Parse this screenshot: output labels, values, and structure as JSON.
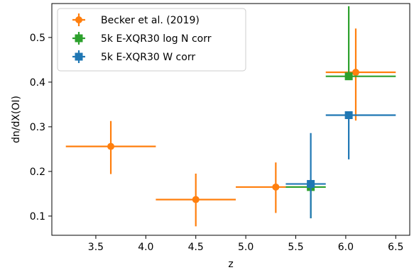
{
  "chart_data": {
    "type": "scatter",
    "xlabel": "z",
    "ylabel": "dn/dX(OI)",
    "xlim": [
      3.06,
      6.64
    ],
    "ylim": [
      0.057,
      0.576
    ],
    "xticks": [
      "3.5",
      "4.0",
      "4.5",
      "5.0",
      "5.5",
      "6.0",
      "6.5"
    ],
    "yticks": [
      "0.1",
      "0.2",
      "0.3",
      "0.4",
      "0.5"
    ],
    "legend_position": "top-left",
    "series": [
      {
        "name": "Becker et al. (2019)",
        "color": "#ff7f0e",
        "marker": "circle",
        "points": [
          {
            "x": 3.65,
            "y": 0.256,
            "xerr": [
              0.45,
              0.45
            ],
            "yerr": [
              0.062,
              0.057
            ]
          },
          {
            "x": 4.5,
            "y": 0.137,
            "xerr": [
              0.4,
              0.4
            ],
            "yerr": [
              0.06,
              0.058
            ]
          },
          {
            "x": 5.3,
            "y": 0.165,
            "xerr": [
              0.4,
              0.4
            ],
            "yerr": [
              0.058,
              0.055
            ]
          },
          {
            "x": 6.1,
            "y": 0.422,
            "xerr": [
              0.3,
              0.4
            ],
            "yerr": [
              0.108,
              0.098
            ]
          }
        ]
      },
      {
        "name": "5k E-XQR30 log N corr",
        "color": "#2ca02c",
        "marker": "square",
        "points": [
          {
            "x": 5.65,
            "y": 0.165,
            "xerr": [
              0.25,
              0.15
            ],
            "yerr": [
              0.07,
              0.005
            ]
          },
          {
            "x": 6.03,
            "y": 0.413,
            "xerr": [
              0.23,
              0.47
            ],
            "yerr": [
              0.005,
              0.157
            ]
          }
        ]
      },
      {
        "name": "5k E-XQR30 W corr",
        "color": "#1f77b4",
        "marker": "square",
        "points": [
          {
            "x": 5.65,
            "y": 0.172,
            "xerr": [
              0.25,
              0.15
            ],
            "yerr": [
              0.077,
              0.114
            ]
          },
          {
            "x": 6.03,
            "y": 0.326,
            "xerr": [
              0.23,
              0.47
            ],
            "yerr": [
              0.099,
              0.005
            ]
          }
        ]
      }
    ]
  }
}
